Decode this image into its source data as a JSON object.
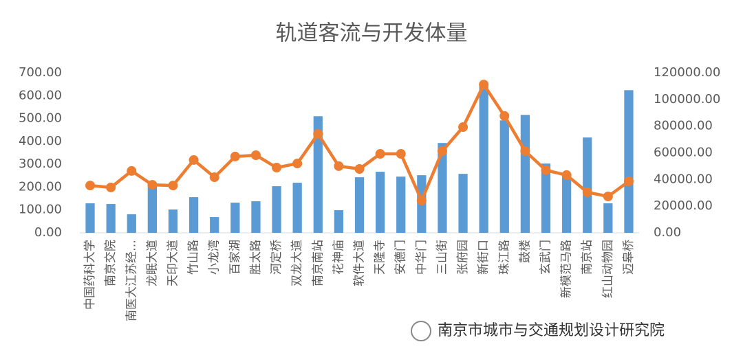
{
  "chart_data": {
    "type": "bar-line",
    "title": "轨道客流与开发体量",
    "annotation": "南京市城市与交通规划设计研究院",
    "categories": [
      "中国药科大学",
      "南京交院",
      "南医大江苏经…",
      "龙眠大道",
      "天印大道",
      "竹山路",
      "小龙湾",
      "百家湖",
      "胜太路",
      "河定桥",
      "双龙大道",
      "南京南站",
      "花神庙",
      "软件大道",
      "天隆寺",
      "安德门",
      "中华门",
      "三山街",
      "张府园",
      "新街口",
      "珠江路",
      "鼓楼",
      "玄武门",
      "新模范马路",
      "南京站",
      "红山动物园",
      "迈皋桥"
    ],
    "series": [
      {
        "type": "bar",
        "color": "#5b9bd5",
        "values": [
          129,
          126,
          81,
          213,
          102,
          156,
          69,
          132,
          138,
          204,
          219,
          510,
          99,
          243,
          267,
          246,
          252,
          393,
          258,
          642,
          492,
          516,
          303,
          249,
          417,
          129,
          624
        ]
      },
      {
        "type": "line",
        "axis": "y2",
        "color": "#ed7d31",
        "values": [
          35500,
          34000,
          46400,
          36000,
          35500,
          54600,
          41700,
          57200,
          58200,
          48900,
          52000,
          74200,
          50000,
          47900,
          59200,
          59200,
          24200,
          61300,
          79300,
          111200,
          87600,
          61300,
          46900,
          43300,
          30400,
          27300,
          38600
        ]
      }
    ],
    "ylim": [
      0,
      700
    ],
    "yticks": [
      {
        "value": 0,
        "label": "0.00"
      },
      {
        "value": 100,
        "label": "100.00"
      },
      {
        "value": 200,
        "label": "200.00"
      },
      {
        "value": 300,
        "label": "300.00"
      },
      {
        "value": 400,
        "label": "400.00"
      },
      {
        "value": 500,
        "label": "500.00"
      },
      {
        "value": 600,
        "label": "600.00"
      },
      {
        "value": 700,
        "label": "700.00"
      }
    ],
    "y2lim": [
      0,
      120000
    ],
    "y2ticks": [
      {
        "value": 0,
        "label": "0.00"
      },
      {
        "value": 20000,
        "label": "20000.00"
      },
      {
        "value": 40000,
        "label": "40000.00"
      },
      {
        "value": 60000,
        "label": "60000.00"
      },
      {
        "value": 80000,
        "label": "80000.00"
      },
      {
        "value": 100000,
        "label": "100000.00"
      },
      {
        "value": 120000,
        "label": "120000.00"
      }
    ],
    "grid": false
  }
}
